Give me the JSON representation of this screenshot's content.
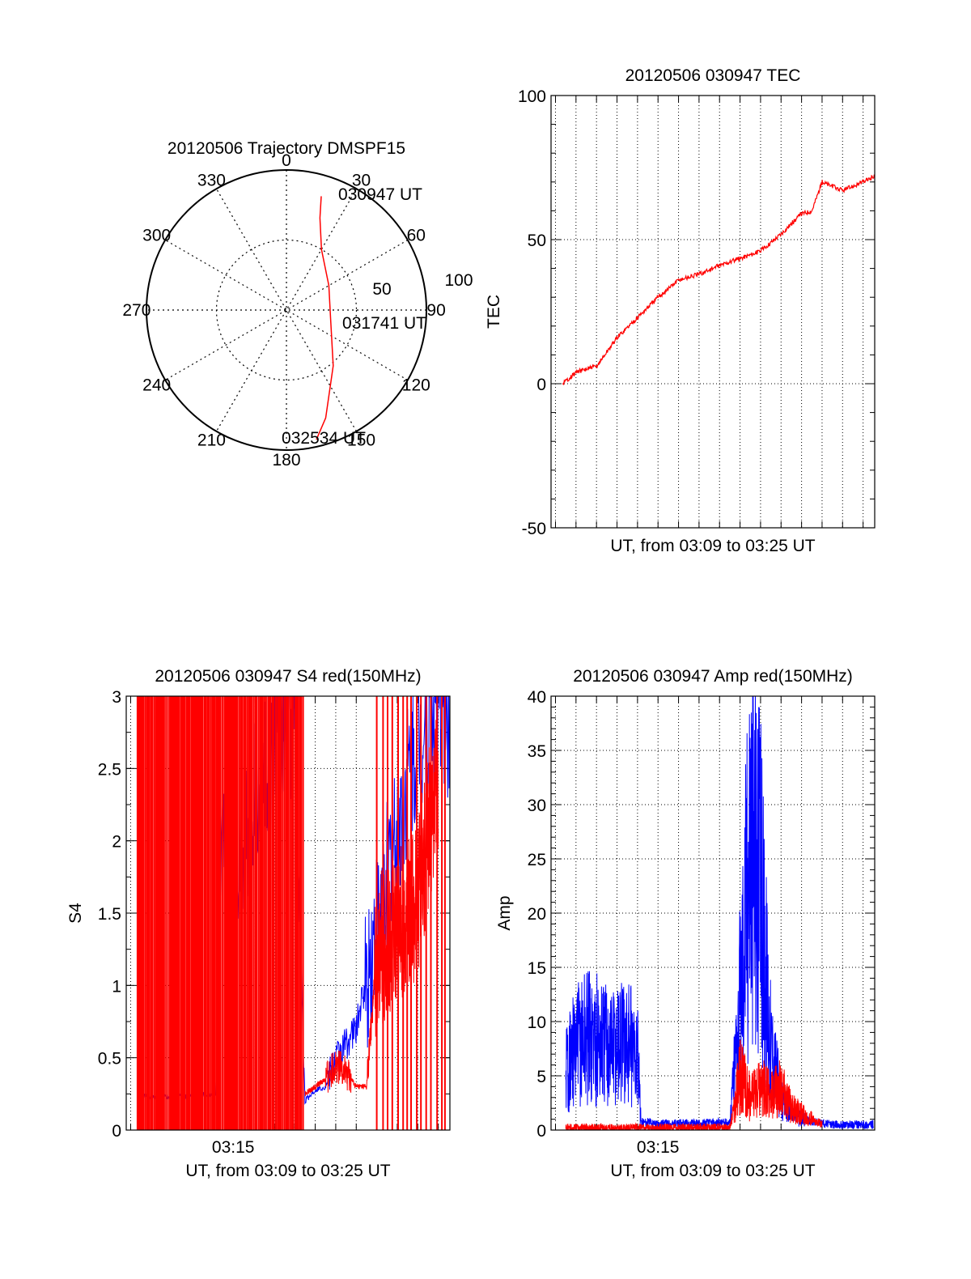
{
  "chart_data": [
    {
      "type": "polar",
      "title": "20120506 Trajectory DMSPF15",
      "azimuth_labels": [
        "0",
        "30",
        "60",
        "90",
        "120",
        "150",
        "180",
        "210",
        "240",
        "270",
        "300",
        "330"
      ],
      "radial_labels": [
        "50",
        "100"
      ],
      "grid": true,
      "series": [
        {
          "color": "#ff0000",
          "points": [
            {
              "az": 17,
              "r": 85
            },
            {
              "az": 20,
              "r": 70
            },
            {
              "az": 30,
              "r": 50
            },
            {
              "az": 60,
              "r": 35
            },
            {
              "az": 100,
              "r": 32
            },
            {
              "az": 140,
              "r": 52
            },
            {
              "az": 160,
              "r": 82
            },
            {
              "az": 167,
              "r": 95
            }
          ]
        }
      ],
      "annotations": [
        {
          "text": "030947 UT",
          "az": 22,
          "r": 85
        },
        {
          "text": "031741 UT",
          "az": 100,
          "r": 65
        },
        {
          "text": "032534 UT",
          "az": 165,
          "r": 100
        }
      ]
    },
    {
      "type": "line",
      "title": "20120506 030947 TEC",
      "xlabel": "UT, from 03:09 to 03:25 UT",
      "ylabel": "TEC",
      "xlim": [
        "03:09:47",
        "03:25:34"
      ],
      "ylim": [
        -50,
        100
      ],
      "yticks": [
        "-50",
        "0",
        "50",
        "100"
      ],
      "grid": true,
      "series": [
        {
          "color": "#ff0000",
          "x": [
            "03:10:21",
            "03:11:00",
            "03:12:00",
            "03:13:00",
            "03:14:00",
            "03:15:00",
            "03:16:00",
            "03:17:00",
            "03:18:00",
            "03:20:00",
            "03:21:00",
            "03:22:00",
            "03:22:30",
            "03:23:00",
            "03:24:00",
            "03:25:00",
            "03:25:34"
          ],
          "y": [
            0,
            4,
            6,
            16,
            23,
            30,
            36,
            38,
            41,
            46,
            52,
            59,
            60,
            70,
            67,
            70,
            72
          ]
        }
      ]
    },
    {
      "type": "line",
      "title": "20120506 030947 S4 red(150MHz)",
      "xlabel": "UT, from 03:09 to 03:25 UT",
      "ylabel": "S4",
      "xlim": [
        "03:09:47",
        "03:25:34"
      ],
      "ylim": [
        0,
        3
      ],
      "xticks": [
        "03:15"
      ],
      "yticks": [
        "0",
        "0.5",
        "1",
        "1.5",
        "2",
        "2.5",
        "3"
      ],
      "grid": true,
      "series": [
        {
          "color": "#0000ff",
          "x": [
            "03:10:32",
            "03:11:30",
            "03:13:00",
            "03:14:10",
            "03:14:30",
            "03:15:00",
            "03:16:00",
            "03:17:00",
            "03:18:00",
            "03:18:30",
            "03:19:00",
            "03:19:30",
            "03:20:00",
            "03:21:00",
            "03:22:00",
            "03:23:00",
            "03:24:00",
            "03:25:00",
            "03:25:34"
          ],
          "y": [
            0.23,
            0.23,
            0.24,
            0.25,
            1.9,
            1.75,
            2.3,
            2.6,
            2.8,
            0.2,
            0.28,
            0.3,
            0.5,
            0.7,
            1.4,
            2.1,
            2.7,
            2.9,
            2.8
          ]
        },
        {
          "color": "#ff0000",
          "x": [
            "03:18:30",
            "03:19:00",
            "03:19:30",
            "03:20:00",
            "03:20:30",
            "03:21:00",
            "03:21:30",
            "03:22:00",
            "03:23:00",
            "03:24:00",
            "03:25:00"
          ],
          "y": [
            0.25,
            0.3,
            0.35,
            0.45,
            0.4,
            0.3,
            0.3,
            1.2,
            1.4,
            1.6,
            2.5
          ]
        }
      ]
    },
    {
      "type": "line",
      "title": "20120506 030947 Amp red(150MHz)",
      "xlabel": "UT, from 03:09 to 03:25 UT",
      "ylabel": "Amp",
      "xlim": [
        "03:09:47",
        "03:25:34"
      ],
      "ylim": [
        0,
        40
      ],
      "xticks": [
        "03:15"
      ],
      "yticks": [
        "0",
        "5",
        "10",
        "15",
        "20",
        "25",
        "30",
        "35",
        "40"
      ],
      "grid": true,
      "series": [
        {
          "color": "#0000ff",
          "x": [
            "03:10:30",
            "03:11:30",
            "03:12:30",
            "03:13:30",
            "03:14:00",
            "03:14:10",
            "03:15:00",
            "03:16:30",
            "03:18:30",
            "03:19:00",
            "03:19:30",
            "03:20:00",
            "03:20:30",
            "03:21:00",
            "03:21:30",
            "03:22:30",
            "03:23:30",
            "03:24:30",
            "03:25:30"
          ],
          "y": [
            6,
            9,
            8,
            8,
            7,
            0.8,
            0.6,
            0.6,
            0.7,
            12,
            28,
            22,
            8,
            3,
            1.5,
            0.8,
            0.5,
            0.5,
            0.5
          ]
        },
        {
          "color": "#ff0000",
          "x": [
            "03:10:30",
            "03:12:00",
            "03:14:00",
            "03:18:30",
            "03:19:00",
            "03:19:30",
            "03:20:00",
            "03:20:30",
            "03:21:00",
            "03:21:30",
            "03:22:00",
            "03:22:30",
            "03:23:00"
          ],
          "y": [
            0.2,
            0.2,
            0.2,
            0.2,
            5,
            3,
            4,
            3,
            4,
            2,
            1.5,
            1,
            0.5
          ]
        }
      ]
    }
  ]
}
